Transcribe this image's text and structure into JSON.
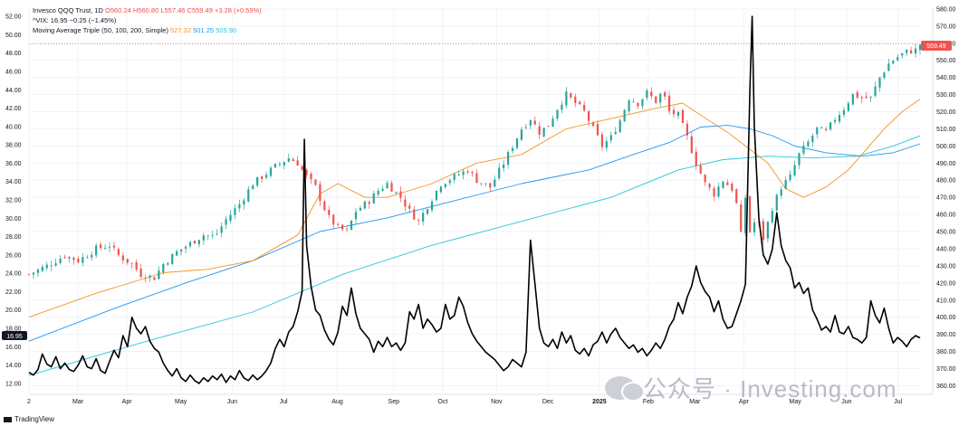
{
  "legend": {
    "symbol": "Invesco QQQ Trust, 1D",
    "ohlc": "O560.24 H560.80 L557.46 C559.49 +3.28 (+0.59%)",
    "vix": "^VIX: 16.95 −0.25 (−1.45%)",
    "ma_name": "Moving Average Triple (50, 100, 200, Simple)",
    "ma50": "527.32",
    "ma100": "501.25",
    "ma200": "505.90"
  },
  "badges": {
    "price": "559.49",
    "vix": "16.95"
  },
  "branding": {
    "tradingview": "TradingView",
    "watermark": "公众号 · Investing.com",
    "tv_icon": "tradingview-logo-icon",
    "wm_icon": "wechat-icon"
  },
  "colors": {
    "up": "#26a69a",
    "down": "#ef5350",
    "ma50": "#f7931a",
    "ma100": "#2196f3",
    "ma200": "#26c6da",
    "vix": "#000000"
  },
  "chart_data": {
    "type": "line",
    "x_ticks": [
      "2",
      "Mar",
      "Apr",
      "May",
      "Jun",
      "Jul",
      "Aug",
      "Sep",
      "Oct",
      "Nov",
      "Dec",
      "2025",
      "Feb",
      "Mar",
      "Apr",
      "May",
      "Jun",
      "Jul"
    ],
    "y_left_ticks": [
      "12.00",
      "14.00",
      "16.00",
      "18.00",
      "20.00",
      "22.00",
      "24.00",
      "26.00",
      "28.00",
      "30.00",
      "32.00",
      "34.00",
      "36.00",
      "38.00",
      "40.00",
      "42.00",
      "44.00",
      "46.00",
      "48.00",
      "50.00",
      "52.00"
    ],
    "y_right_ticks": [
      "360.00",
      "370.00",
      "380.00",
      "390.00",
      "400.00",
      "410.00",
      "420.00",
      "430.00",
      "440.00",
      "450.00",
      "460.00",
      "470.00",
      "480.00",
      "490.00",
      "500.00",
      "510.00",
      "520.00",
      "530.00",
      "540.00",
      "550.00",
      "560.00",
      "570.00",
      "580.00"
    ],
    "ylim_left": [
      11,
      53
    ],
    "ylim_right": [
      356,
      581
    ],
    "qqq_close": [
      [
        0,
        425
      ],
      [
        8,
        430
      ],
      [
        16,
        436
      ],
      [
        22,
        433
      ],
      [
        30,
        440
      ],
      [
        36,
        442
      ],
      [
        40,
        436
      ],
      [
        46,
        431
      ],
      [
        50,
        425
      ],
      [
        56,
        423
      ],
      [
        60,
        431
      ],
      [
        66,
        438
      ],
      [
        72,
        443
      ],
      [
        78,
        448
      ],
      [
        83,
        447
      ],
      [
        88,
        457
      ],
      [
        94,
        466
      ],
      [
        100,
        478
      ],
      [
        104,
        482
      ],
      [
        110,
        488
      ],
      [
        116,
        493
      ],
      [
        120,
        490
      ],
      [
        124,
        482
      ],
      [
        128,
        476
      ],
      [
        131,
        466
      ],
      [
        134,
        458
      ],
      [
        138,
        452
      ],
      [
        142,
        450
      ],
      [
        146,
        462
      ],
      [
        152,
        468
      ],
      [
        156,
        474
      ],
      [
        160,
        478
      ],
      [
        166,
        470
      ],
      [
        170,
        462
      ],
      [
        174,
        456
      ],
      [
        178,
        465
      ],
      [
        184,
        478
      ],
      [
        190,
        482
      ],
      [
        196,
        486
      ],
      [
        200,
        480
      ],
      [
        206,
        476
      ],
      [
        212,
        490
      ],
      [
        216,
        500
      ],
      [
        220,
        510
      ],
      [
        224,
        516
      ],
      [
        228,
        508
      ],
      [
        232,
        512
      ],
      [
        236,
        522
      ],
      [
        240,
        530
      ],
      [
        244,
        525
      ],
      [
        248,
        520
      ],
      [
        252,
        510
      ],
      [
        256,
        500
      ],
      [
        260,
        505
      ],
      [
        264,
        515
      ],
      [
        268,
        528
      ],
      [
        272,
        525
      ],
      [
        276,
        531
      ],
      [
        280,
        526
      ],
      [
        283,
        532
      ],
      [
        286,
        520
      ],
      [
        290,
        518
      ],
      [
        294,
        505
      ],
      [
        298,
        490
      ],
      [
        302,
        478
      ],
      [
        306,
        472
      ],
      [
        310,
        480
      ],
      [
        314,
        475
      ],
      [
        316,
        466
      ],
      [
        318,
        448
      ],
      [
        320,
        470
      ],
      [
        322,
        450
      ],
      [
        325,
        458
      ],
      [
        328,
        446
      ],
      [
        332,
        464
      ],
      [
        336,
        476
      ],
      [
        340,
        482
      ],
      [
        344,
        495
      ],
      [
        348,
        502
      ],
      [
        352,
        510
      ],
      [
        356,
        508
      ],
      [
        360,
        516
      ],
      [
        364,
        522
      ],
      [
        368,
        530
      ],
      [
        372,
        528
      ],
      [
        376,
        528
      ],
      [
        380,
        540
      ],
      [
        384,
        548
      ],
      [
        388,
        552
      ],
      [
        392,
        555
      ],
      [
        396,
        556
      ],
      [
        398,
        559.49
      ]
    ],
    "sma50": [
      [
        0,
        400
      ],
      [
        30,
        414
      ],
      [
        60,
        426
      ],
      [
        80,
        428
      ],
      [
        100,
        433
      ],
      [
        120,
        448
      ],
      [
        130,
        472
      ],
      [
        138,
        478
      ],
      [
        150,
        470
      ],
      [
        160,
        470
      ],
      [
        180,
        478
      ],
      [
        200,
        490
      ],
      [
        220,
        495
      ],
      [
        240,
        510
      ],
      [
        260,
        516
      ],
      [
        280,
        522
      ],
      [
        292,
        525
      ],
      [
        300,
        518
      ],
      [
        312,
        508
      ],
      [
        320,
        500
      ],
      [
        330,
        490
      ],
      [
        338,
        475
      ],
      [
        346,
        470
      ],
      [
        356,
        476
      ],
      [
        366,
        486
      ],
      [
        374,
        498
      ],
      [
        382,
        510
      ],
      [
        390,
        520
      ],
      [
        398,
        527.32
      ]
    ],
    "sma100": [
      [
        0,
        386
      ],
      [
        40,
        406
      ],
      [
        70,
        420
      ],
      [
        100,
        433
      ],
      [
        130,
        450
      ],
      [
        160,
        458
      ],
      [
        190,
        468
      ],
      [
        220,
        478
      ],
      [
        250,
        486
      ],
      [
        270,
        495
      ],
      [
        286,
        502
      ],
      [
        300,
        511
      ],
      [
        312,
        512
      ],
      [
        322,
        510
      ],
      [
        332,
        506
      ],
      [
        342,
        500
      ],
      [
        356,
        496
      ],
      [
        372,
        494
      ],
      [
        386,
        496
      ],
      [
        398,
        501.25
      ]
    ],
    "sma200": [
      [
        0,
        366
      ],
      [
        50,
        385
      ],
      [
        100,
        403
      ],
      [
        140,
        425
      ],
      [
        180,
        442
      ],
      [
        220,
        456
      ],
      [
        260,
        470
      ],
      [
        290,
        486
      ],
      [
        310,
        492
      ],
      [
        330,
        494
      ],
      [
        350,
        493
      ],
      [
        370,
        494
      ],
      [
        386,
        500
      ],
      [
        398,
        505.9
      ]
    ],
    "vix": [
      [
        0,
        13.2
      ],
      [
        2,
        12.9
      ],
      [
        4,
        13.5
      ],
      [
        6,
        15.2
      ],
      [
        8,
        14.1
      ],
      [
        10,
        13.8
      ],
      [
        12,
        14.9
      ],
      [
        14,
        13.6
      ],
      [
        16,
        14.2
      ],
      [
        18,
        13.5
      ],
      [
        20,
        13.3
      ],
      [
        22,
        14.0
      ],
      [
        24,
        15.0
      ],
      [
        26,
        13.8
      ],
      [
        28,
        13.6
      ],
      [
        30,
        14.7
      ],
      [
        32,
        13.4
      ],
      [
        34,
        13.1
      ],
      [
        36,
        14.4
      ],
      [
        38,
        15.6
      ],
      [
        40,
        14.8
      ],
      [
        42,
        17.2
      ],
      [
        44,
        16.0
      ],
      [
        46,
        19.2
      ],
      [
        48,
        18.0
      ],
      [
        50,
        17.4
      ],
      [
        52,
        18.2
      ],
      [
        54,
        16.6
      ],
      [
        56,
        15.8
      ],
      [
        58,
        15.4
      ],
      [
        60,
        14.2
      ],
      [
        62,
        13.4
      ],
      [
        64,
        12.8
      ],
      [
        66,
        13.6
      ],
      [
        68,
        12.6
      ],
      [
        70,
        12.2
      ],
      [
        72,
        12.9
      ],
      [
        74,
        12.3
      ],
      [
        76,
        12.0
      ],
      [
        78,
        12.6
      ],
      [
        80,
        12.2
      ],
      [
        82,
        12.8
      ],
      [
        84,
        12.4
      ],
      [
        86,
        13.0
      ],
      [
        88,
        12.1
      ],
      [
        90,
        12.8
      ],
      [
        92,
        12.4
      ],
      [
        94,
        13.4
      ],
      [
        96,
        12.6
      ],
      [
        98,
        12.3
      ],
      [
        100,
        12.9
      ],
      [
        102,
        12.4
      ],
      [
        104,
        12.8
      ],
      [
        106,
        13.4
      ],
      [
        108,
        14.2
      ],
      [
        110,
        15.8
      ],
      [
        112,
        16.8
      ],
      [
        114,
        16.0
      ],
      [
        116,
        17.6
      ],
      [
        118,
        18.2
      ],
      [
        120,
        19.8
      ],
      [
        122,
        22.0
      ],
      [
        123,
        38.6
      ],
      [
        124,
        27.0
      ],
      [
        126,
        22.6
      ],
      [
        128,
        20.0
      ],
      [
        130,
        19.4
      ],
      [
        132,
        17.8
      ],
      [
        134,
        16.8
      ],
      [
        136,
        16.2
      ],
      [
        138,
        17.6
      ],
      [
        140,
        20.4
      ],
      [
        142,
        19.4
      ],
      [
        144,
        22.4
      ],
      [
        146,
        19.6
      ],
      [
        148,
        18.0
      ],
      [
        150,
        17.4
      ],
      [
        152,
        16.8
      ],
      [
        154,
        15.4
      ],
      [
        156,
        16.6
      ],
      [
        158,
        16.0
      ],
      [
        160,
        17.0
      ],
      [
        162,
        16.0
      ],
      [
        164,
        16.4
      ],
      [
        166,
        15.6
      ],
      [
        168,
        16.4
      ],
      [
        170,
        19.8
      ],
      [
        172,
        19.0
      ],
      [
        174,
        20.6
      ],
      [
        176,
        18.0
      ],
      [
        178,
        19.0
      ],
      [
        180,
        18.4
      ],
      [
        182,
        17.6
      ],
      [
        184,
        18.0
      ],
      [
        186,
        20.6
      ],
      [
        188,
        19.0
      ],
      [
        190,
        19.4
      ],
      [
        192,
        21.4
      ],
      [
        194,
        20.4
      ],
      [
        196,
        18.6
      ],
      [
        198,
        17.4
      ],
      [
        200,
        16.6
      ],
      [
        202,
        16.0
      ],
      [
        204,
        15.4
      ],
      [
        206,
        15.0
      ],
      [
        208,
        14.6
      ],
      [
        210,
        14.0
      ],
      [
        212,
        13.4
      ],
      [
        214,
        13.8
      ],
      [
        216,
        14.6
      ],
      [
        218,
        14.2
      ],
      [
        220,
        13.8
      ],
      [
        222,
        15.4
      ],
      [
        224,
        27.6
      ],
      [
        226,
        22.8
      ],
      [
        228,
        18.0
      ],
      [
        230,
        16.4
      ],
      [
        232,
        16.0
      ],
      [
        234,
        16.8
      ],
      [
        236,
        15.8
      ],
      [
        238,
        17.6
      ],
      [
        240,
        16.4
      ],
      [
        242,
        17.2
      ],
      [
        244,
        15.6
      ],
      [
        246,
        15.2
      ],
      [
        248,
        15.8
      ],
      [
        250,
        15.0
      ],
      [
        252,
        16.2
      ],
      [
        254,
        16.6
      ],
      [
        256,
        17.6
      ],
      [
        258,
        16.4
      ],
      [
        260,
        17.4
      ],
      [
        262,
        18.0
      ],
      [
        264,
        17.0
      ],
      [
        266,
        16.4
      ],
      [
        268,
        15.8
      ],
      [
        270,
        16.2
      ],
      [
        272,
        15.4
      ],
      [
        274,
        15.8
      ],
      [
        276,
        15.0
      ],
      [
        278,
        15.6
      ],
      [
        280,
        16.4
      ],
      [
        282,
        15.8
      ],
      [
        284,
        16.8
      ],
      [
        286,
        18.2
      ],
      [
        288,
        19.0
      ],
      [
        290,
        20.8
      ],
      [
        292,
        19.6
      ],
      [
        294,
        21.4
      ],
      [
        296,
        22.6
      ],
      [
        298,
        24.8
      ],
      [
        300,
        23.0
      ],
      [
        302,
        22.0
      ],
      [
        304,
        21.4
      ],
      [
        306,
        19.8
      ],
      [
        308,
        21.0
      ],
      [
        310,
        19.0
      ],
      [
        312,
        18.0
      ],
      [
        314,
        18.2
      ],
      [
        316,
        19.6
      ],
      [
        318,
        21.0
      ],
      [
        320,
        22.8
      ],
      [
        322,
        44.0
      ],
      [
        323,
        52.0
      ],
      [
        324,
        40.0
      ],
      [
        326,
        30.0
      ],
      [
        328,
        26.0
      ],
      [
        330,
        25.0
      ],
      [
        332,
        26.6
      ],
      [
        334,
        30.6
      ],
      [
        336,
        27.0
      ],
      [
        338,
        25.4
      ],
      [
        340,
        24.6
      ],
      [
        342,
        22.4
      ],
      [
        344,
        23.0
      ],
      [
        346,
        21.8
      ],
      [
        348,
        22.4
      ],
      [
        350,
        20.0
      ],
      [
        352,
        19.0
      ],
      [
        354,
        17.8
      ],
      [
        356,
        18.2
      ],
      [
        358,
        17.6
      ],
      [
        360,
        19.4
      ],
      [
        362,
        17.6
      ],
      [
        364,
        17.4
      ],
      [
        366,
        18.2
      ],
      [
        368,
        17.0
      ],
      [
        370,
        16.8
      ],
      [
        372,
        16.4
      ],
      [
        374,
        17.0
      ],
      [
        376,
        21.0
      ],
      [
        378,
        19.4
      ],
      [
        380,
        18.6
      ],
      [
        382,
        20.2
      ],
      [
        384,
        18.0
      ],
      [
        386,
        16.4
      ],
      [
        388,
        17.0
      ],
      [
        390,
        16.6
      ],
      [
        392,
        16.0
      ],
      [
        394,
        16.8
      ],
      [
        396,
        17.2
      ],
      [
        398,
        16.95
      ]
    ]
  }
}
